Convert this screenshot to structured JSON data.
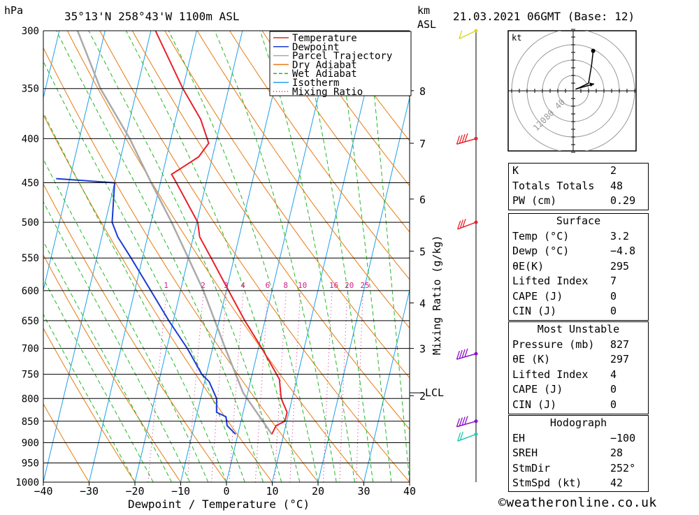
{
  "header": {
    "location": "35°13'N  258°43'W  1100m  ASL",
    "datetime": "21.03.2021  06GMT  (Base: 12)",
    "hpa_label": "hPa",
    "km_label": "km",
    "asl_label": "ASL",
    "kt_label": "kt"
  },
  "chart_data": {
    "type": "skew-t",
    "xlabel": "Dewpoint / Temperature (°C)",
    "y2label": "Mixing Ratio (g/kg)",
    "xlim": [
      -40,
      40
    ],
    "ylim_hpa": [
      1000,
      300
    ],
    "x_ticks": [
      "-40",
      "-30",
      "-20",
      "-10",
      "0",
      "10",
      "20",
      "30",
      "40"
    ],
    "pressure_levels": [
      300,
      350,
      400,
      450,
      500,
      550,
      600,
      650,
      700,
      750,
      800,
      850,
      900,
      950,
      1000
    ],
    "pressure_labels": [
      "300",
      "350",
      "400",
      "450",
      "500",
      "550",
      "600",
      "650",
      "700",
      "750",
      "800",
      "850",
      "900",
      "950",
      "1000"
    ],
    "km_ticks": [
      {
        "label": "8",
        "hpa": 352
      },
      {
        "label": "7",
        "hpa": 405
      },
      {
        "label": "6",
        "hpa": 470
      },
      {
        "label": "5",
        "hpa": 540
      },
      {
        "label": "4",
        "hpa": 620
      },
      {
        "label": "3",
        "hpa": 700
      },
      {
        "label": "2",
        "hpa": 794
      }
    ],
    "lcl": {
      "label": "LCL",
      "hpa": 788
    },
    "mixing_ratio_labels": [
      "1",
      "2",
      "3",
      "4",
      "6",
      "8",
      "10",
      "16",
      "20",
      "25"
    ],
    "mixing_ratio_values": [
      1,
      2,
      3,
      4,
      6,
      8,
      10,
      16,
      20,
      25
    ],
    "legend": [
      {
        "name": "Temperature",
        "color": "#e8202a",
        "style": "solid"
      },
      {
        "name": "Dewpoint",
        "color": "#1a3ad4",
        "style": "solid"
      },
      {
        "name": "Parcel Trajectory",
        "color": "#aaaaaa",
        "style": "solid"
      },
      {
        "name": "Dry Adiabat",
        "color": "#e87a10",
        "style": "solid"
      },
      {
        "name": "Wet Adiabat",
        "color": "#22b822",
        "style": "dashed"
      },
      {
        "name": "Isotherm",
        "color": "#1ea0e8",
        "style": "solid"
      },
      {
        "name": "Mixing Ratio",
        "color": "#d0208a",
        "style": "dotted"
      }
    ],
    "temperature": [
      {
        "p": 880,
        "t": 7.4
      },
      {
        "p": 860,
        "t": 7.9
      },
      {
        "p": 850,
        "t": 9.6
      },
      {
        "p": 830,
        "t": 9.6
      },
      {
        "p": 800,
        "t": 7.6
      },
      {
        "p": 760,
        "t": 6.2
      },
      {
        "p": 700,
        "t": 0.8
      },
      {
        "p": 650,
        "t": -4.4
      },
      {
        "p": 600,
        "t": -9.5
      },
      {
        "p": 550,
        "t": -15.0
      },
      {
        "p": 520,
        "t": -18.6
      },
      {
        "p": 500,
        "t": -19.8
      },
      {
        "p": 450,
        "t": -26.5
      },
      {
        "p": 440,
        "t": -28.0
      },
      {
        "p": 420,
        "t": -23.0
      },
      {
        "p": 405,
        "t": -21.5
      },
      {
        "p": 380,
        "t": -24.5
      },
      {
        "p": 350,
        "t": -30.0
      },
      {
        "p": 300,
        "t": -39.0
      }
    ],
    "dewpoint": [
      {
        "p": 880,
        "t": -0.5
      },
      {
        "p": 860,
        "t": -2.8
      },
      {
        "p": 840,
        "t": -3.5
      },
      {
        "p": 830,
        "t": -5.8
      },
      {
        "p": 800,
        "t": -6.5
      },
      {
        "p": 765,
        "t": -9.0
      },
      {
        "p": 750,
        "t": -11.0
      },
      {
        "p": 700,
        "t": -15.5
      },
      {
        "p": 650,
        "t": -21.0
      },
      {
        "p": 600,
        "t": -26.5
      },
      {
        "p": 550,
        "t": -32.5
      },
      {
        "p": 520,
        "t": -36.5
      },
      {
        "p": 500,
        "t": -38.5
      },
      {
        "p": 450,
        "t": -40.0
      },
      {
        "p": 445,
        "t": -53.0
      }
    ],
    "parcel": [
      {
        "p": 880,
        "t": 7.4
      },
      {
        "p": 788,
        "t": -1.0
      },
      {
        "p": 700,
        "t": -7.2
      },
      {
        "p": 600,
        "t": -15.0
      },
      {
        "p": 550,
        "t": -20.0
      },
      {
        "p": 500,
        "t": -25.5
      },
      {
        "p": 450,
        "t": -32.0
      },
      {
        "p": 400,
        "t": -39.0
      },
      {
        "p": 350,
        "t": -48.0
      },
      {
        "p": 300,
        "t": -56.0
      }
    ],
    "wind_barbs": [
      {
        "hpa": 300,
        "color": "#d8d820",
        "speed_kt": 10,
        "dir": 240
      },
      {
        "hpa": 400,
        "color": "#e8202a",
        "speed_kt": 40,
        "dir": 260
      },
      {
        "hpa": 500,
        "color": "#e8202a",
        "speed_kt": 25,
        "dir": 250
      },
      {
        "hpa": 710,
        "color": "#8a10c8",
        "speed_kt": 35,
        "dir": 260
      },
      {
        "hpa": 850,
        "color": "#8a10c8",
        "speed_kt": 35,
        "dir": 260
      },
      {
        "hpa": 880,
        "color": "#20c8b0",
        "speed_kt": 15,
        "dir": 250
      }
    ],
    "hodograph": {
      "ring_labels": [
        "40",
        "80",
        "120"
      ],
      "points": [
        {
          "u": 3,
          "v": 2
        },
        {
          "u": 8,
          "v": 4
        },
        {
          "u": 14,
          "v": 7
        },
        {
          "u": 20,
          "v": 10
        },
        {
          "u": 24,
          "v": 34
        },
        {
          "u": 26,
          "v": 52
        }
      ]
    }
  },
  "indices": {
    "top": [
      {
        "key": "K",
        "value": "2"
      },
      {
        "key": "Totals Totals",
        "value": "48"
      },
      {
        "key": "PW (cm)",
        "value": "0.29"
      }
    ],
    "surface": {
      "title": "Surface",
      "rows": [
        {
          "key": "Temp (°C)",
          "value": "3.2"
        },
        {
          "key": "Dewp (°C)",
          "value": "−4.8"
        },
        {
          "key": "θE(K)",
          "value": "295"
        },
        {
          "key": "Lifted Index",
          "value": "7"
        },
        {
          "key": "CAPE (J)",
          "value": "0"
        },
        {
          "key": "CIN (J)",
          "value": "0"
        }
      ]
    },
    "most_unstable": {
      "title": "Most Unstable",
      "rows": [
        {
          "key": "Pressure (mb)",
          "value": "827"
        },
        {
          "key": "θE (K)",
          "value": "297"
        },
        {
          "key": "Lifted Index",
          "value": "4"
        },
        {
          "key": "CAPE (J)",
          "value": "0"
        },
        {
          "key": "CIN (J)",
          "value": "0"
        }
      ]
    },
    "hodograph": {
      "title": "Hodograph",
      "rows": [
        {
          "key": "EH",
          "value": "−100"
        },
        {
          "key": "SREH",
          "value": "28"
        },
        {
          "key": "StmDir",
          "value": "252°"
        },
        {
          "key": "StmSpd (kt)",
          "value": "42"
        }
      ]
    }
  },
  "footer": {
    "credit": "©weatheronline.co.uk"
  },
  "colors": {
    "temperature": "#e8202a",
    "dewpoint": "#1a3ad4",
    "parcel": "#aaaaaa",
    "dry_adiabat": "#e87a10",
    "wet_adiabat": "#22b822",
    "isotherm": "#1ea0e8",
    "mixing_ratio": "#d0208a"
  }
}
